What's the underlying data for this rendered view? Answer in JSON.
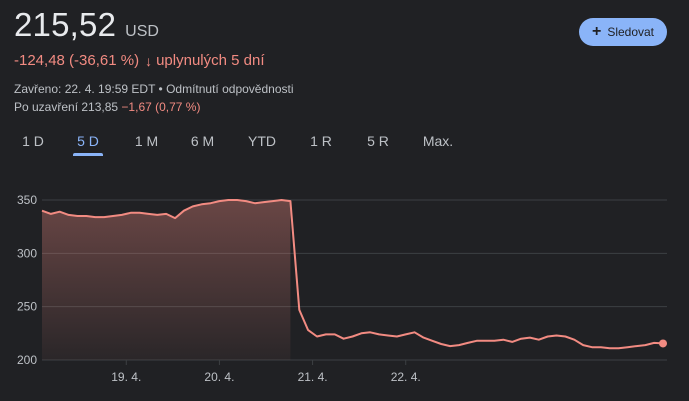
{
  "quote": {
    "price": "215,52",
    "currency": "USD",
    "change": "-124,48 (-36,61 %)",
    "change_arrow": "↓",
    "period": "uplynulých 5 dní",
    "closed_text": "Zavřeno: 22. 4. 19:59 EDT",
    "separator": " • ",
    "disclaimer": "Odmítnutí odpovědnosti",
    "after_hours_label": "Po uzavření 213,85 ",
    "after_hours_change": "−1,67 (0,77 %)"
  },
  "follow_button": {
    "icon": "plus-icon",
    "label": "Sledovat"
  },
  "tabs": [
    {
      "label": "1 D",
      "active": false
    },
    {
      "label": "5 D",
      "active": true
    },
    {
      "label": "1 M",
      "active": false
    },
    {
      "label": "6 M",
      "active": false
    },
    {
      "label": "YTD",
      "active": false
    },
    {
      "label": "1 R",
      "active": false
    },
    {
      "label": "5 R",
      "active": false
    },
    {
      "label": "Max.",
      "active": false
    }
  ],
  "colors": {
    "background": "#202124",
    "line": "#f28b82",
    "accent": "#8ab4f8",
    "grid": "#3c4043",
    "text_muted": "#bdc1c6"
  },
  "chart_data": {
    "type": "area",
    "ylim": [
      200,
      355
    ],
    "yticks": [
      200,
      250,
      300,
      350
    ],
    "ytick_labels": [
      "200",
      "250",
      "300",
      "350"
    ],
    "xtick_labels": [
      "19. 4.",
      "20. 4.",
      "21. 4.",
      "22. 4."
    ],
    "xtick_index": [
      9.5,
      20,
      30.5,
      41
    ],
    "grid": true,
    "series": [
      {
        "values": [
          340,
          337,
          339,
          336,
          335,
          335,
          334,
          334,
          335,
          336,
          338,
          338,
          337,
          336,
          337,
          333,
          340,
          344,
          346,
          347,
          349,
          350,
          350,
          349,
          347,
          348,
          349,
          350,
          349,
          247,
          228,
          222,
          224,
          224,
          220,
          222,
          225,
          226,
          224,
          223,
          222,
          224,
          226,
          221,
          218,
          215,
          213,
          214,
          216,
          218,
          218,
          218,
          219,
          217,
          220,
          221,
          219,
          222,
          223,
          222,
          219,
          214,
          212,
          212,
          211,
          211,
          212,
          213,
          214,
          216,
          215.52
        ]
      }
    ]
  }
}
